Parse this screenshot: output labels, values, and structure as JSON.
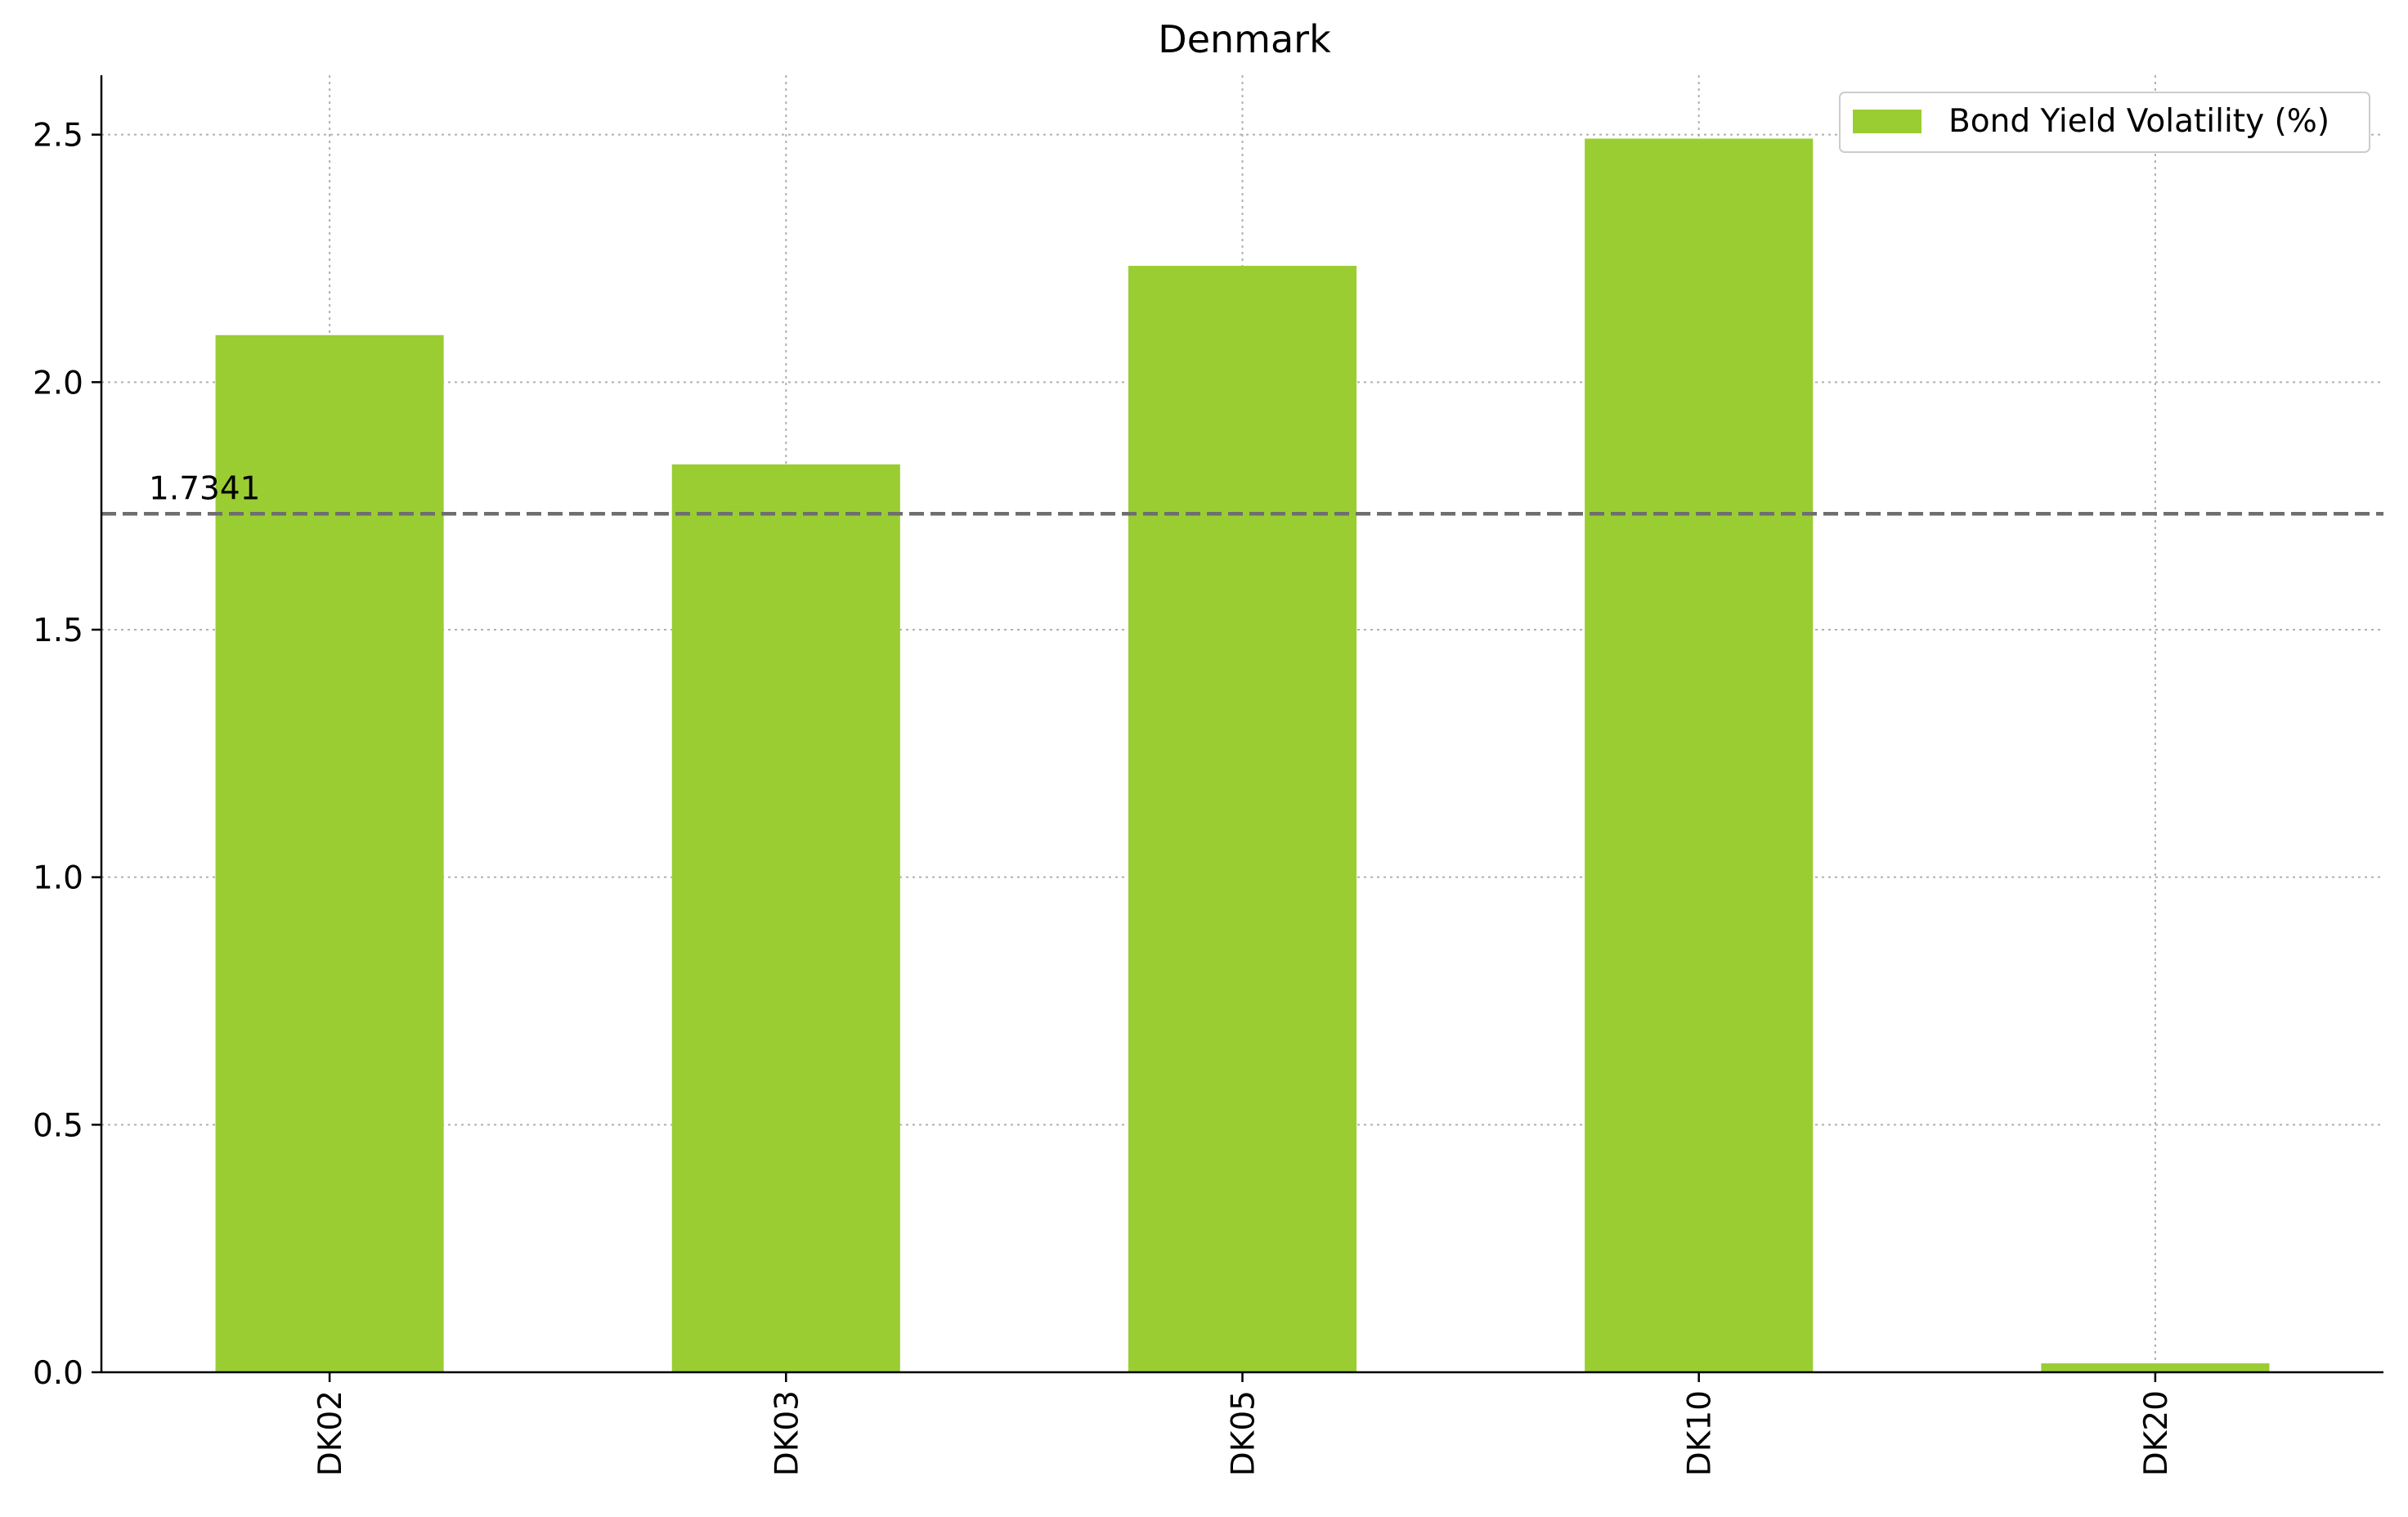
{
  "chart_data": {
    "type": "bar",
    "title": "Denmark",
    "xlabel": "",
    "ylabel": "",
    "categories": [
      "DK02",
      "DK03",
      "DK05",
      "DK10",
      "DK20"
    ],
    "series": [
      {
        "name": "Bond Yield Volatility (%)",
        "values": [
          2.095,
          1.834,
          2.235,
          2.492,
          0.018
        ],
        "color": "#9acd32"
      }
    ],
    "ylim": [
      0,
      2.62
    ],
    "yticks": [
      0.0,
      0.5,
      1.0,
      1.5,
      2.0,
      2.5
    ],
    "ytick_labels": [
      "0.0",
      "0.5",
      "1.0",
      "1.5",
      "2.0",
      "2.5"
    ],
    "reference_line": {
      "value": 1.7341,
      "label": "1.7341",
      "style": "dashed",
      "color": "#6e6e6e"
    },
    "grid": true,
    "legend_position": "top-right"
  }
}
